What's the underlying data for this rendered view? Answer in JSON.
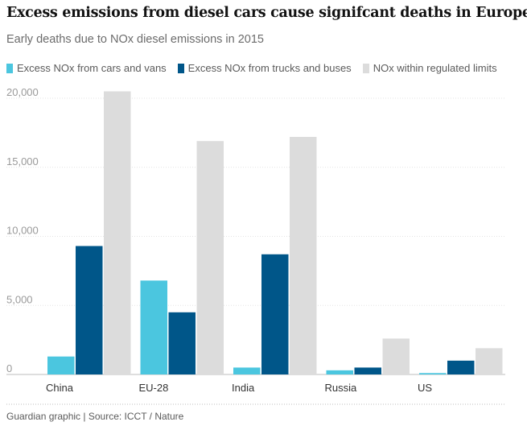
{
  "chart_data": {
    "type": "bar",
    "title": "Excess emissions from diesel cars cause signifcant deaths in Europe",
    "subtitle": "Early deaths due to NOx diesel emissions in 2015",
    "categories": [
      "China",
      "EU-28",
      "India",
      "Russia",
      "US"
    ],
    "series": [
      {
        "name": "Excess NOx from cars and vans",
        "color": "#4bc6df",
        "values": [
          1300,
          6800,
          500,
          300,
          100
        ]
      },
      {
        "name": "Excess NOx from trucks and buses",
        "color": "#005689",
        "values": [
          9300,
          4500,
          8700,
          500,
          1000
        ]
      },
      {
        "name": "NOx within regulated limits",
        "color": "#dcdcdc",
        "values": [
          20500,
          16900,
          17200,
          2600,
          1900
        ]
      }
    ],
    "y_ticks": [
      "20,000",
      "15,000",
      "10,000",
      "5,000",
      "0"
    ],
    "ylim": [
      0,
      20000
    ],
    "xlabel": "",
    "ylabel": "",
    "legend_position": "top"
  },
  "source": "Guardian graphic | Source: ICCT / Nature"
}
